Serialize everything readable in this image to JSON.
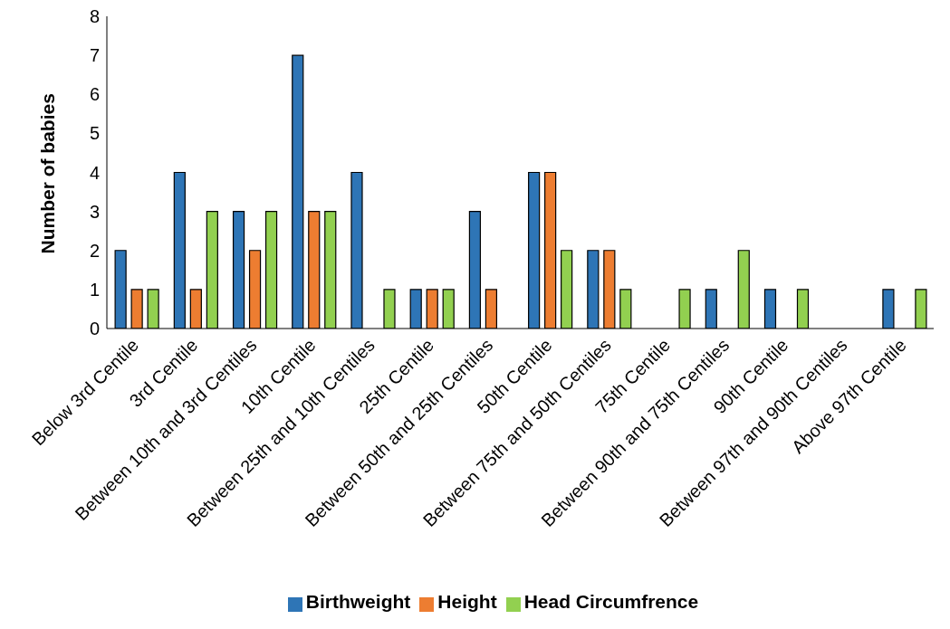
{
  "chart_data": {
    "type": "bar",
    "ylabel": "Number of babies",
    "categories": [
      "Below 3rd Centile",
      "3rd Centile",
      "Between 10th and 3rd Centiles",
      "10th Centile",
      "Between 25th and 10th Centiles",
      "25th Centile",
      "Between 50th and 25th Centiles",
      "50th Centile",
      "Between 75th and 50th Centiles",
      "75th Centile",
      "Between 90th and 75th Centiles",
      "90th Centile",
      "Between 97th and 90th Centiles",
      "Above 97th Centile"
    ],
    "series": [
      {
        "name": "Birthweight",
        "color": "#2e75b6",
        "values": [
          2,
          4,
          3,
          7,
          4,
          1,
          3,
          4,
          2,
          0,
          1,
          1,
          0,
          1
        ]
      },
      {
        "name": "Height",
        "color": "#ed7d31",
        "values": [
          1,
          1,
          2,
          3,
          0,
          1,
          1,
          4,
          2,
          0,
          0,
          0,
          0,
          0
        ]
      },
      {
        "name": "Head Circumfrence",
        "color": "#92d050",
        "values": [
          1,
          3,
          3,
          3,
          1,
          1,
          0,
          2,
          1,
          1,
          2,
          1,
          0,
          1
        ]
      }
    ],
    "ylim": [
      0,
      8
    ],
    "yticks": [
      0,
      1,
      2,
      3,
      4,
      5,
      6,
      7,
      8
    ],
    "grid": false,
    "legend": "bottom"
  }
}
